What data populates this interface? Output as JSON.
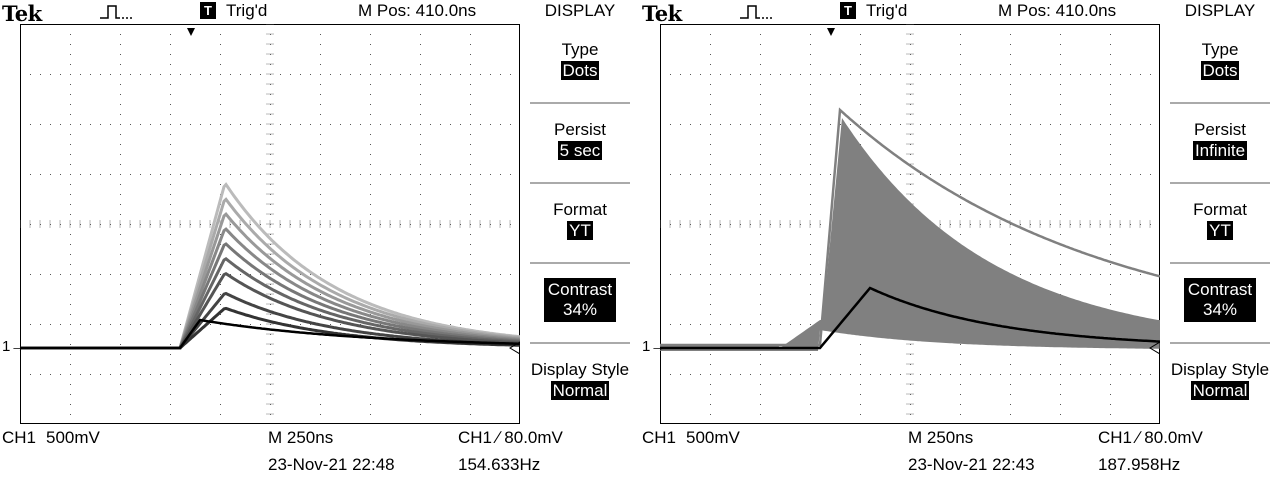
{
  "scopes": [
    {
      "brand": "Tek",
      "trigger_badge": "T",
      "trigger_status": "Trig'd",
      "m_pos": "M Pos: 410.0ns",
      "menu": {
        "title": "DISPLAY",
        "type_label": "Type",
        "type_value": "Dots",
        "persist_label": "Persist",
        "persist_value": "5 sec",
        "format_label": "Format",
        "format_value": "YT",
        "contrast_label": "Contrast",
        "contrast_value": "34%",
        "style_label": "Display Style",
        "style_value": "Normal"
      },
      "ground_marker": "1",
      "ch1_label": "CH1",
      "ch1_scale": "500mV",
      "timebase": "M 250ns",
      "trigger_info": "CH1 ∕ 80.0mV",
      "date_time": "23-Nov-21 22:48",
      "frequency": "154.633Hz",
      "waveform": {
        "persistence": "5 sec",
        "peak_div": 4.2,
        "rise_start_div": 3.2
      }
    },
    {
      "brand": "Tek",
      "trigger_badge": "T",
      "trigger_status": "Trig'd",
      "m_pos": "M Pos: 410.0ns",
      "menu": {
        "title": "DISPLAY",
        "type_label": "Type",
        "type_value": "Dots",
        "persist_label": "Persist",
        "persist_value": "Infinite",
        "format_label": "Format",
        "format_value": "YT",
        "contrast_label": "Contrast",
        "contrast_value": "34%",
        "style_label": "Display Style",
        "style_value": "Normal"
      },
      "ground_marker": "1",
      "ch1_label": "CH1",
      "ch1_scale": "500mV",
      "timebase": "M 250ns",
      "trigger_info": "CH1 ∕ 80.0mV",
      "date_time": "23-Nov-21 22:43",
      "frequency": "187.958Hz",
      "waveform": {
        "persistence": "Infinite",
        "peak_div": 6.0,
        "rise_start_div": 3.2
      }
    }
  ],
  "colors": {
    "background": "#ffffff",
    "trace": "#000000",
    "persist_gray": "#808080",
    "graticule": "#000000"
  }
}
